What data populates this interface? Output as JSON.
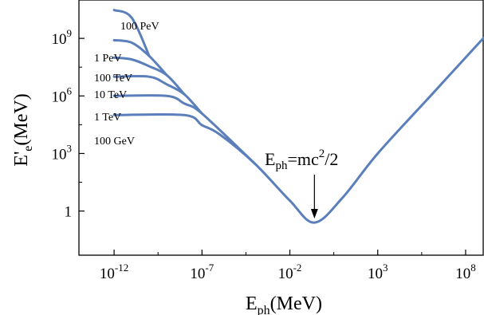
{
  "chart_data": {
    "type": "line",
    "x_scale": "log",
    "y_scale": "log",
    "xlabel": {
      "main": "E",
      "sub": "ph",
      "unit": "(MeV)"
    },
    "ylabel": {
      "main": "E'",
      "sub": "e",
      "unit": "(MeV)"
    },
    "x_ticks": [
      {
        "base": "10",
        "exp": "-12",
        "value": 1e-12
      },
      {
        "base": "10",
        "exp": "-7",
        "value": 1e-07
      },
      {
        "base": "10",
        "exp": "-2",
        "value": 0.01
      },
      {
        "base": "10",
        "exp": "3",
        "value": 1000.0
      },
      {
        "base": "10",
        "exp": "8",
        "value": 100000000.0
      }
    ],
    "y_ticks": [
      {
        "base": "1",
        "exp": "",
        "value": 1
      },
      {
        "base": "10",
        "exp": "3",
        "value": 1000.0
      },
      {
        "base": "10",
        "exp": "6",
        "value": 1000000.0
      },
      {
        "base": "10",
        "exp": "9",
        "value": 1000000000.0
      }
    ],
    "xlim": [
      1e-14,
      1000000000.0
    ],
    "ylim": [
      0.005,
      100000000000.0
    ],
    "color": "#5b7fbb",
    "series": [
      {
        "name": "100 GeV",
        "values": [
          {
            "x": 1e-12,
            "y": 100000.0
          },
          {
            "x": 1e-08,
            "y": 100000.0
          },
          {
            "x": 1e-07,
            "y": 30000.0
          },
          {
            "x": 1e-06,
            "y": 10000.0
          },
          {
            "x": 0.0001,
            "y": 300
          },
          {
            "x": 0.01,
            "y": 3.5
          },
          {
            "x": 0.25,
            "y": 0.25
          },
          {
            "x": 10,
            "y": 5
          },
          {
            "x": 1000.0,
            "y": 1000.0
          },
          {
            "x": 1000000.0,
            "y": 1000000.0
          },
          {
            "x": 1000000000.0,
            "y": 1000000000.0
          }
        ]
      },
      {
        "name": "1 TeV",
        "values": [
          {
            "x": 1e-12,
            "y": 1000000.0
          },
          {
            "x": 1e-09,
            "y": 1000000.0
          },
          {
            "x": 1e-08,
            "y": 400000.0
          },
          {
            "x": 1e-07,
            "y": 120000.0
          },
          {
            "x": 0.0001,
            "y": 300
          }
        ]
      },
      {
        "name": "10 TeV",
        "values": [
          {
            "x": 1e-12,
            "y": 10000000.0
          },
          {
            "x": 1e-10,
            "y": 10000000.0
          },
          {
            "x": 1e-09,
            "y": 4000000.0
          },
          {
            "x": 1e-08,
            "y": 1200000.0
          },
          {
            "x": 1e-07,
            "y": 120000.0
          }
        ]
      },
      {
        "name": "100 TeV",
        "values": [
          {
            "x": 1e-12,
            "y": 100000000.0
          },
          {
            "x": 1e-11,
            "y": 80000000.0
          },
          {
            "x": 1e-10,
            "y": 35000000.0
          },
          {
            "x": 1e-09,
            "y": 12000000.0
          },
          {
            "x": 1e-08,
            "y": 1200000.0
          }
        ]
      },
      {
        "name": "1 PeV",
        "values": [
          {
            "x": 1e-12,
            "y": 800000000.0
          },
          {
            "x": 1e-11,
            "y": 600000000.0
          },
          {
            "x": 1e-10,
            "y": 120000000.0
          },
          {
            "x": 1e-09,
            "y": 12000000.0
          }
        ]
      },
      {
        "name": "100 PeV",
        "values": [
          {
            "x": 1e-12,
            "y": 30000000000.0
          },
          {
            "x": 1e-11,
            "y": 12000000000.0
          },
          {
            "x": 1e-10,
            "y": 120000000.0
          }
        ]
      }
    ],
    "annotation": {
      "base": "E",
      "sub": "ph",
      "eq": "=mc",
      "sup": "2",
      "tail": "/2",
      "x": 0.25,
      "y": 0.25
    }
  }
}
